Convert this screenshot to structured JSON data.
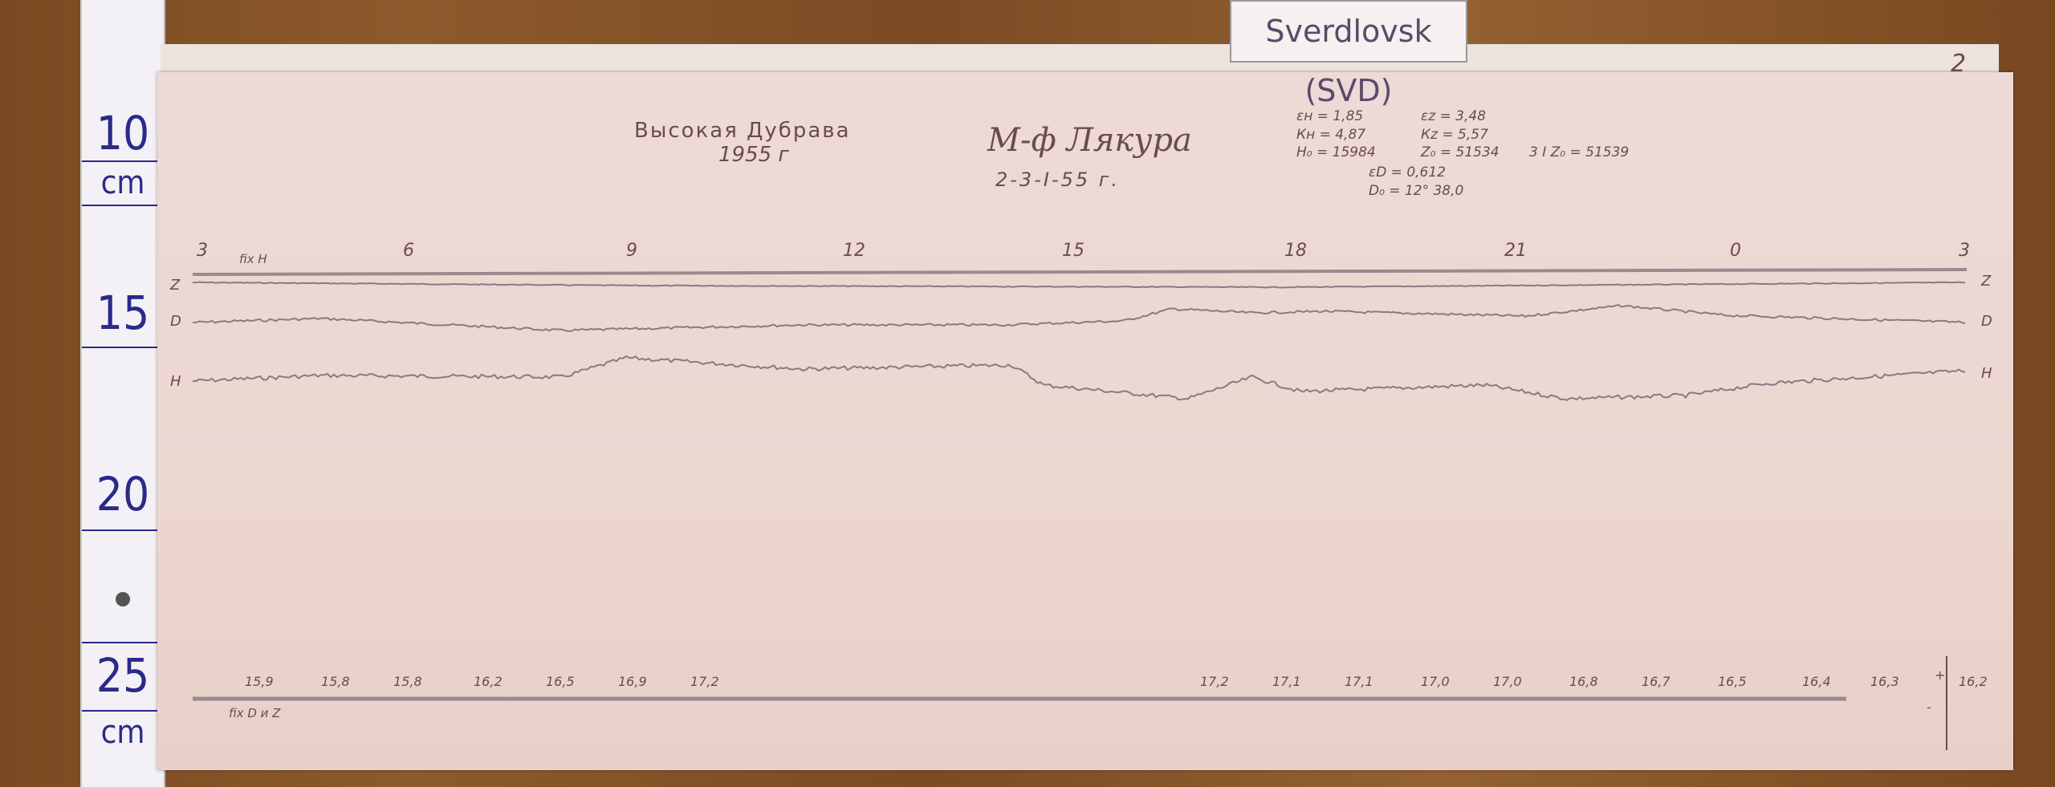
{
  "station_label": "Sverdlovsk (SVD)",
  "ruler": {
    "marks": [
      "10",
      "15",
      "20",
      "25"
    ],
    "unit": "cm"
  },
  "sheet": {
    "page_number": "2",
    "observatory": "Высокая Дубрава",
    "year": "1955 г",
    "instrument": "М-ф Лякура",
    "date": "2-3-I-55 г.",
    "constants": {
      "eps_h": "εн = 1,85",
      "eps_z": "εz = 3,48",
      "k_h": "Кн = 4,87",
      "k_z": "Кz = 5,57",
      "h0": "H₀ = 15984",
      "z0": "Z₀ = 51534",
      "z0_alt": "3 I  Z₀ = 51539",
      "eps_d": "εD = 0,612",
      "d0": "D₀ = 12° 38,0"
    },
    "hour_marks": [
      "3",
      "6",
      "9",
      "12",
      "15",
      "18",
      "21",
      "0",
      "3"
    ],
    "fix_h": "fix H",
    "fix_dz": "fix D и Z",
    "trace_labels": [
      "Z",
      "D",
      "H"
    ],
    "temperatures_left": [
      "15,9",
      "15,8",
      "15,8",
      "16,2",
      "16,5",
      "16,9",
      "17,2"
    ],
    "temperatures_right": [
      "17,2",
      "17,1",
      "17,1",
      "17,0",
      "17,0",
      "16,8",
      "16,7",
      "16,5",
      "16,4",
      "16,3",
      "16,2"
    ],
    "scale_plus": "+",
    "scale_minus": "-"
  }
}
